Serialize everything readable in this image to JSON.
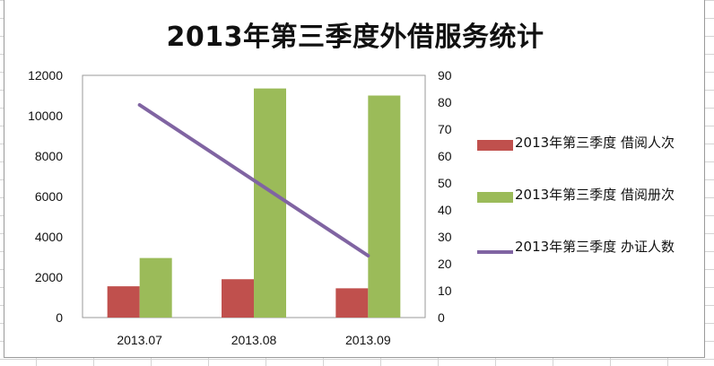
{
  "chart_data": {
    "type": "bar",
    "title": "2013年第三季度外借服务统计",
    "categories": [
      "2013.07",
      "2013.08",
      "2013.09"
    ],
    "series": [
      {
        "name": "2013年第三季度 借阅人次",
        "type": "bar",
        "axis": "left",
        "color": "#c0504d",
        "values": [
          1550,
          1900,
          1450
        ]
      },
      {
        "name": "2013年第三季度 借阅册次",
        "type": "bar",
        "axis": "left",
        "color": "#9bbb59",
        "values": [
          2950,
          11350,
          11000
        ]
      },
      {
        "name": "2013年第三季度 办证人数",
        "type": "line",
        "axis": "right",
        "color": "#8064a2",
        "values": [
          79,
          null,
          23
        ]
      }
    ],
    "y_left": {
      "lim": [
        0,
        12000
      ],
      "ticks": [
        0,
        2000,
        4000,
        6000,
        8000,
        10000,
        12000
      ]
    },
    "y_right": {
      "lim": [
        0,
        90
      ],
      "ticks": [
        0,
        10,
        20,
        30,
        40,
        50,
        60,
        70,
        80,
        90
      ]
    },
    "legend_position": "right",
    "grid": false
  }
}
